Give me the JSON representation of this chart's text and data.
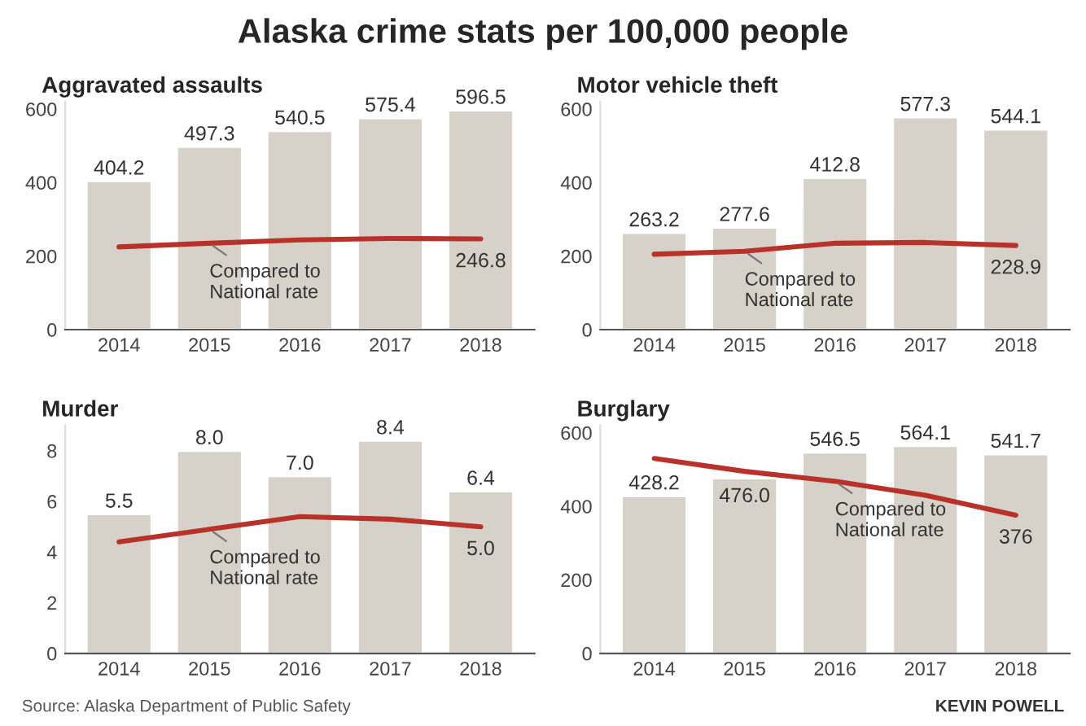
{
  "chart_data": [
    {
      "type": "bar",
      "title": "Aggravated assaults",
      "categories": [
        "2014",
        "2015",
        "2016",
        "2017",
        "2018"
      ],
      "ylim": [
        0,
        620
      ],
      "yticks": [
        0,
        200,
        400,
        600
      ],
      "grid": false,
      "legend": false,
      "series": [
        {
          "color": "#d6d2ca",
          "values": [
            404.2,
            497.3,
            540.5,
            575.4,
            596.5
          ],
          "value_labels": [
            "404.2",
            "497.3",
            "540.5",
            "575.4",
            "596.5"
          ]
        },
        {
          "type": "line",
          "color": "#b8322a",
          "values": [
            225,
            235,
            244,
            248,
            246.8
          ],
          "value_labels": [
            null,
            null,
            null,
            null,
            "246.8"
          ]
        }
      ],
      "annotations": [
        "Alaska crime stats per 100,000 people",
        {
          "text": "Compared to\nNational rate",
          "x": "2015",
          "y": 235
        }
      ]
    },
    {
      "type": "bar",
      "title": "Motor vehicle theft",
      "categories": [
        "2014",
        "2015",
        "2016",
        "2017",
        "2018"
      ],
      "ylim": [
        0,
        620
      ],
      "yticks": [
        0,
        200,
        400,
        600
      ],
      "grid": false,
      "legend": false,
      "series": [
        {
          "color": "#d6d2ca",
          "values": [
            263.2,
            277.6,
            412.8,
            577.3,
            544.1
          ],
          "value_labels": [
            "263.2",
            "277.6",
            "412.8",
            "577.3",
            "544.1"
          ]
        },
        {
          "type": "line",
          "color": "#b8322a",
          "values": [
            205,
            213,
            235,
            237,
            228.9
          ],
          "value_labels": [
            null,
            null,
            null,
            null,
            "228.9"
          ]
        }
      ],
      "annotations": [
        {
          "text": "Compared to\nNational rate",
          "x": "2015",
          "y": 213
        }
      ]
    },
    {
      "type": "bar",
      "title": "Murder",
      "categories": [
        "2014",
        "2015",
        "2016",
        "2017",
        "2018"
      ],
      "ylim": [
        0,
        9
      ],
      "yticks": [
        0,
        2,
        4,
        6,
        8
      ],
      "grid": false,
      "legend": false,
      "series": [
        {
          "color": "#d6d2ca",
          "values": [
            5.5,
            8.0,
            7.0,
            8.4,
            6.4
          ],
          "value_labels": [
            "5.5",
            "8.0",
            "7.0",
            "8.4",
            "6.4"
          ]
        },
        {
          "type": "line",
          "color": "#b8322a",
          "values": [
            4.4,
            4.9,
            5.4,
            5.3,
            5.0
          ],
          "value_labels": [
            null,
            null,
            null,
            null,
            "5.0"
          ]
        }
      ],
      "annotations": [
        {
          "text": "Compared to\nNational rate",
          "x": "2015",
          "y": 4.9
        },
        "Source: Alaska Department of Public Safety"
      ]
    },
    {
      "type": "bar",
      "title": "Burglary",
      "categories": [
        "2014",
        "2015",
        "2016",
        "2017",
        "2018"
      ],
      "ylim": [
        0,
        620
      ],
      "yticks": [
        0,
        200,
        400,
        600
      ],
      "grid": false,
      "legend": false,
      "series": [
        {
          "color": "#d6d2ca",
          "values": [
            428.2,
            476.0,
            546.5,
            564.1,
            541.7
          ],
          "value_labels": [
            "428.2",
            "476.0",
            "546.5",
            "564.1",
            "541.7"
          ]
        },
        {
          "type": "line",
          "color": "#b8322a",
          "values": [
            530,
            495,
            468,
            430,
            376
          ],
          "value_labels": [
            null,
            null,
            null,
            null,
            "376"
          ]
        }
      ],
      "annotations": [
        {
          "text": "Compared to\nNational rate",
          "x": "2016",
          "y": 468
        },
        "KEVIN POWELL"
      ]
    }
  ]
}
